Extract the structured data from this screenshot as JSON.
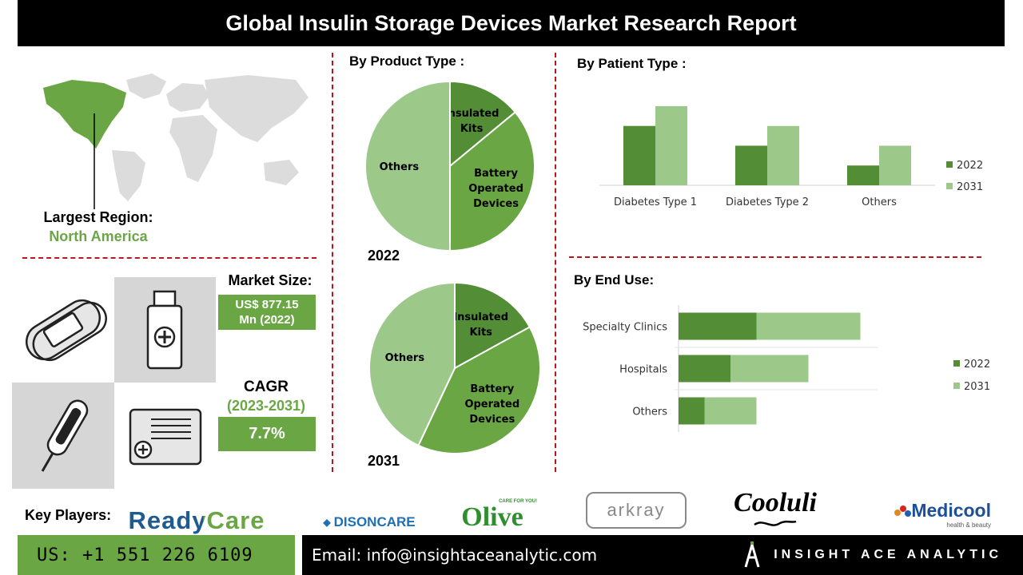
{
  "title": "Global Insulin Storage Devices Market Research Report",
  "region": {
    "label": "Largest Region:",
    "value": "North America"
  },
  "market_size": {
    "label": "Market Size:",
    "value_line1": "US$ 877.15",
    "value_line2": "Mn (2022)"
  },
  "cagr": {
    "label": "CAGR",
    "period": "(2023-2031)",
    "value": "7.7%"
  },
  "key_players": {
    "label": "Key Players:",
    "logos": [
      "ReadyCare",
      "DISONCARE",
      "Olive",
      "arkray",
      "Cooluli",
      "Medicool"
    ],
    "olive_tagline": "CARE FOR YOU!",
    "medicool_tagline": "health & beauty"
  },
  "footer": {
    "phone": "US: +1 551 226 6109",
    "email": "Email: info@insightaceanalytic.com",
    "brand": "INSIGHT ACE ANALYTIC"
  },
  "colors": {
    "dark_green": "#538d35",
    "mid_green": "#6aa744",
    "light_green": "#9cc98a",
    "divider": "#c0141c"
  },
  "chart_data": [
    {
      "id": "product-2022",
      "type": "pie",
      "title": "By Product Type :",
      "caption": "2022",
      "slices": [
        {
          "label_lines": [
            "Insulated",
            "Kits"
          ],
          "value": 14,
          "color": "#538d35"
        },
        {
          "label_lines": [
            "Battery",
            "Operated",
            "Devices"
          ],
          "value": 36,
          "color": "#6aa744"
        },
        {
          "label_lines": [
            "Others"
          ],
          "value": 50,
          "color": "#9cc98a"
        }
      ]
    },
    {
      "id": "product-2031",
      "type": "pie",
      "caption": "2031",
      "slices": [
        {
          "label_lines": [
            "Insulated",
            "Kits"
          ],
          "value": 17,
          "color": "#538d35"
        },
        {
          "label_lines": [
            "Battery",
            "Operated",
            "Devices"
          ],
          "value": 40,
          "color": "#6aa744"
        },
        {
          "label_lines": [
            "Others"
          ],
          "value": 43,
          "color": "#9cc98a"
        }
      ]
    },
    {
      "id": "patient-type",
      "type": "bar",
      "title": "By Patient Type :",
      "categories": [
        "Diabetes Type 1",
        "Diabetes Type 2",
        "Others"
      ],
      "series": [
        {
          "name": "2022",
          "values": [
            3,
            2,
            1
          ],
          "color": "#538d35"
        },
        {
          "name": "2031",
          "values": [
            4,
            3,
            2
          ],
          "color": "#9cc98a"
        }
      ],
      "ylim": [
        0,
        4.2
      ],
      "legend": "right"
    },
    {
      "id": "end-use",
      "type": "bar",
      "orientation": "horizontal",
      "stacked": true,
      "title": "By End Use:",
      "categories": [
        "Specialty Clinics",
        "Hospitals",
        "Others"
      ],
      "series": [
        {
          "name": "2022",
          "values": [
            3,
            2,
            1
          ],
          "color": "#538d35"
        },
        {
          "name": "2031",
          "values": [
            4,
            3,
            2
          ],
          "color": "#9cc98a"
        }
      ],
      "xlim": [
        0,
        8
      ],
      "legend": "right"
    }
  ]
}
